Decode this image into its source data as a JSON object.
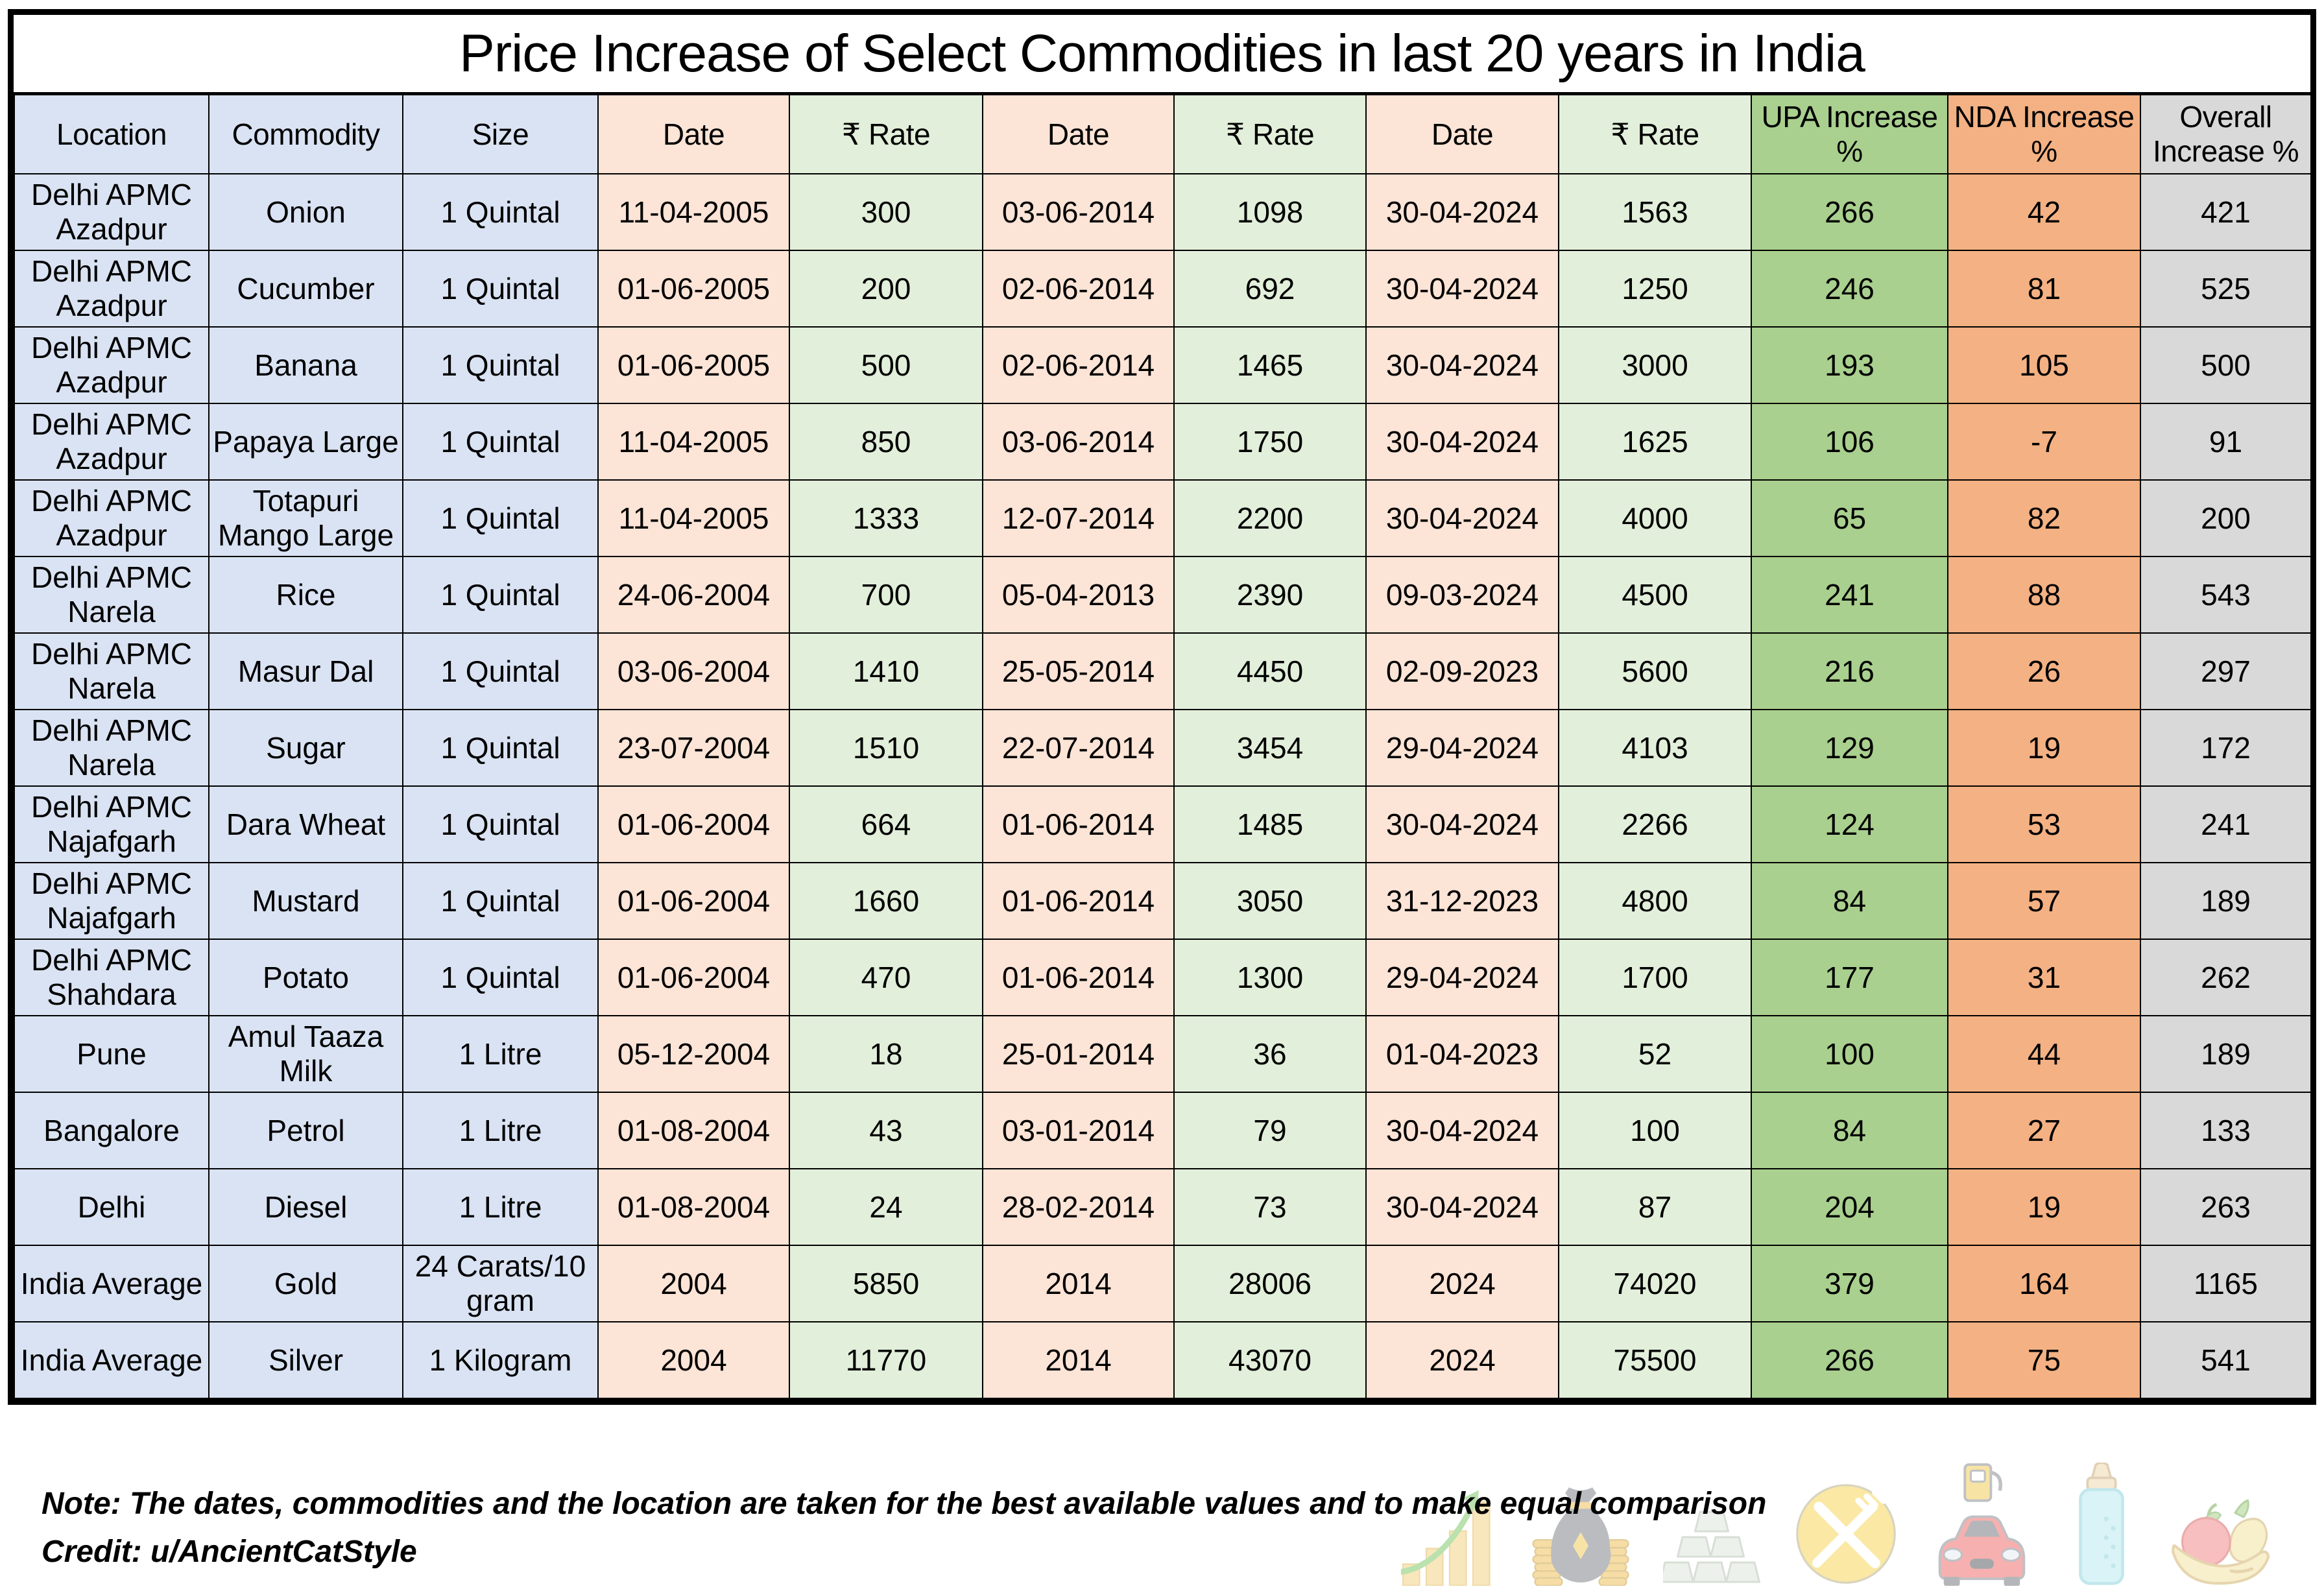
{
  "title": "Price Increase of Select Commodities in last 20 years in India",
  "chart_data": {
    "type": "table",
    "title": "Price Increase of Select Commodities in last 20 years in India",
    "columns": [
      "Location",
      "Commodity",
      "Size",
      "Date",
      "₹ Rate",
      "Date",
      "₹ Rate",
      "Date",
      "₹ Rate",
      "UPA Increase %",
      "NDA Increase %",
      "Overall Increase %"
    ],
    "rows": [
      [
        "Delhi APMC Azadpur",
        "Onion",
        "1 Quintal",
        "11-04-2005",
        "300",
        "03-06-2014",
        "1098",
        "30-04-2024",
        "1563",
        "266",
        "42",
        "421"
      ],
      [
        "Delhi APMC Azadpur",
        "Cucumber",
        "1 Quintal",
        "01-06-2005",
        "200",
        "02-06-2014",
        "692",
        "30-04-2024",
        "1250",
        "246",
        "81",
        "525"
      ],
      [
        "Delhi APMC Azadpur",
        "Banana",
        "1 Quintal",
        "01-06-2005",
        "500",
        "02-06-2014",
        "1465",
        "30-04-2024",
        "3000",
        "193",
        "105",
        "500"
      ],
      [
        "Delhi APMC Azadpur",
        "Papaya Large",
        "1 Quintal",
        "11-04-2005",
        "850",
        "03-06-2014",
        "1750",
        "30-04-2024",
        "1625",
        "106",
        "-7",
        "91"
      ],
      [
        "Delhi APMC Azadpur",
        "Totapuri Mango Large",
        "1 Quintal",
        "11-04-2005",
        "1333",
        "12-07-2014",
        "2200",
        "30-04-2024",
        "4000",
        "65",
        "82",
        "200"
      ],
      [
        "Delhi APMC Narela",
        "Rice",
        "1 Quintal",
        "24-06-2004",
        "700",
        "05-04-2013",
        "2390",
        "09-03-2024",
        "4500",
        "241",
        "88",
        "543"
      ],
      [
        "Delhi APMC Narela",
        "Masur Dal",
        "1 Quintal",
        "03-06-2004",
        "1410",
        "25-05-2014",
        "4450",
        "02-09-2023",
        "5600",
        "216",
        "26",
        "297"
      ],
      [
        "Delhi APMC Narela",
        "Sugar",
        "1 Quintal",
        "23-07-2004",
        "1510",
        "22-07-2014",
        "3454",
        "29-04-2024",
        "4103",
        "129",
        "19",
        "172"
      ],
      [
        "Delhi APMC Najafgarh",
        "Dara Wheat",
        "1 Quintal",
        "01-06-2004",
        "664",
        "01-06-2014",
        "1485",
        "30-04-2024",
        "2266",
        "124",
        "53",
        "241"
      ],
      [
        "Delhi APMC Najafgarh",
        "Mustard",
        "1 Quintal",
        "01-06-2004",
        "1660",
        "01-06-2014",
        "3050",
        "31-12-2023",
        "4800",
        "84",
        "57",
        "189"
      ],
      [
        "Delhi APMC Shahdara",
        "Potato",
        "1 Quintal",
        "01-06-2004",
        "470",
        "01-06-2014",
        "1300",
        "29-04-2024",
        "1700",
        "177",
        "31",
        "262"
      ],
      [
        "Pune",
        "Amul Taaza Milk",
        "1 Litre",
        "05-12-2004",
        "18",
        "25-01-2014",
        "36",
        "01-04-2023",
        "52",
        "100",
        "44",
        "189"
      ],
      [
        "Bangalore",
        "Petrol",
        "1 Litre",
        "01-08-2004",
        "43",
        "03-01-2014",
        "79",
        "30-04-2024",
        "100",
        "84",
        "27",
        "133"
      ],
      [
        "Delhi",
        "Diesel",
        "1 Litre",
        "01-08-2004",
        "24",
        "28-02-2014",
        "73",
        "30-04-2024",
        "87",
        "204",
        "19",
        "263"
      ],
      [
        "India Average",
        "Gold",
        "24 Carats/10 gram",
        "2004",
        "5850",
        "2014",
        "28006",
        "2024",
        "74020",
        "379",
        "164",
        "1165"
      ],
      [
        "India Average",
        "Silver",
        "1 Kilogram",
        "2004",
        "11770",
        "2014",
        "43070",
        "2024",
        "75500",
        "266",
        "75",
        "541"
      ]
    ]
  },
  "note": "Note: The dates, commodities and the location are taken for the best available values and to make equal comparison",
  "credit": "Credit: u/AncientCatStyle",
  "icons": {
    "names": [
      "growth-chart-icon",
      "money-bag-icon",
      "silver-bars-icon",
      "food-icon",
      "fuel-car-icon",
      "milk-bottle-icon",
      "fruit-bowl-icon"
    ]
  },
  "colors": {
    "label_blue": "#dae3f3",
    "date_peach": "#fce4d6",
    "rate_light_green": "#e2efda",
    "upa_green": "#a9d08e",
    "nda_orange": "#f4b183",
    "overall_gray": "#d9d9d9",
    "border": "#000000"
  }
}
